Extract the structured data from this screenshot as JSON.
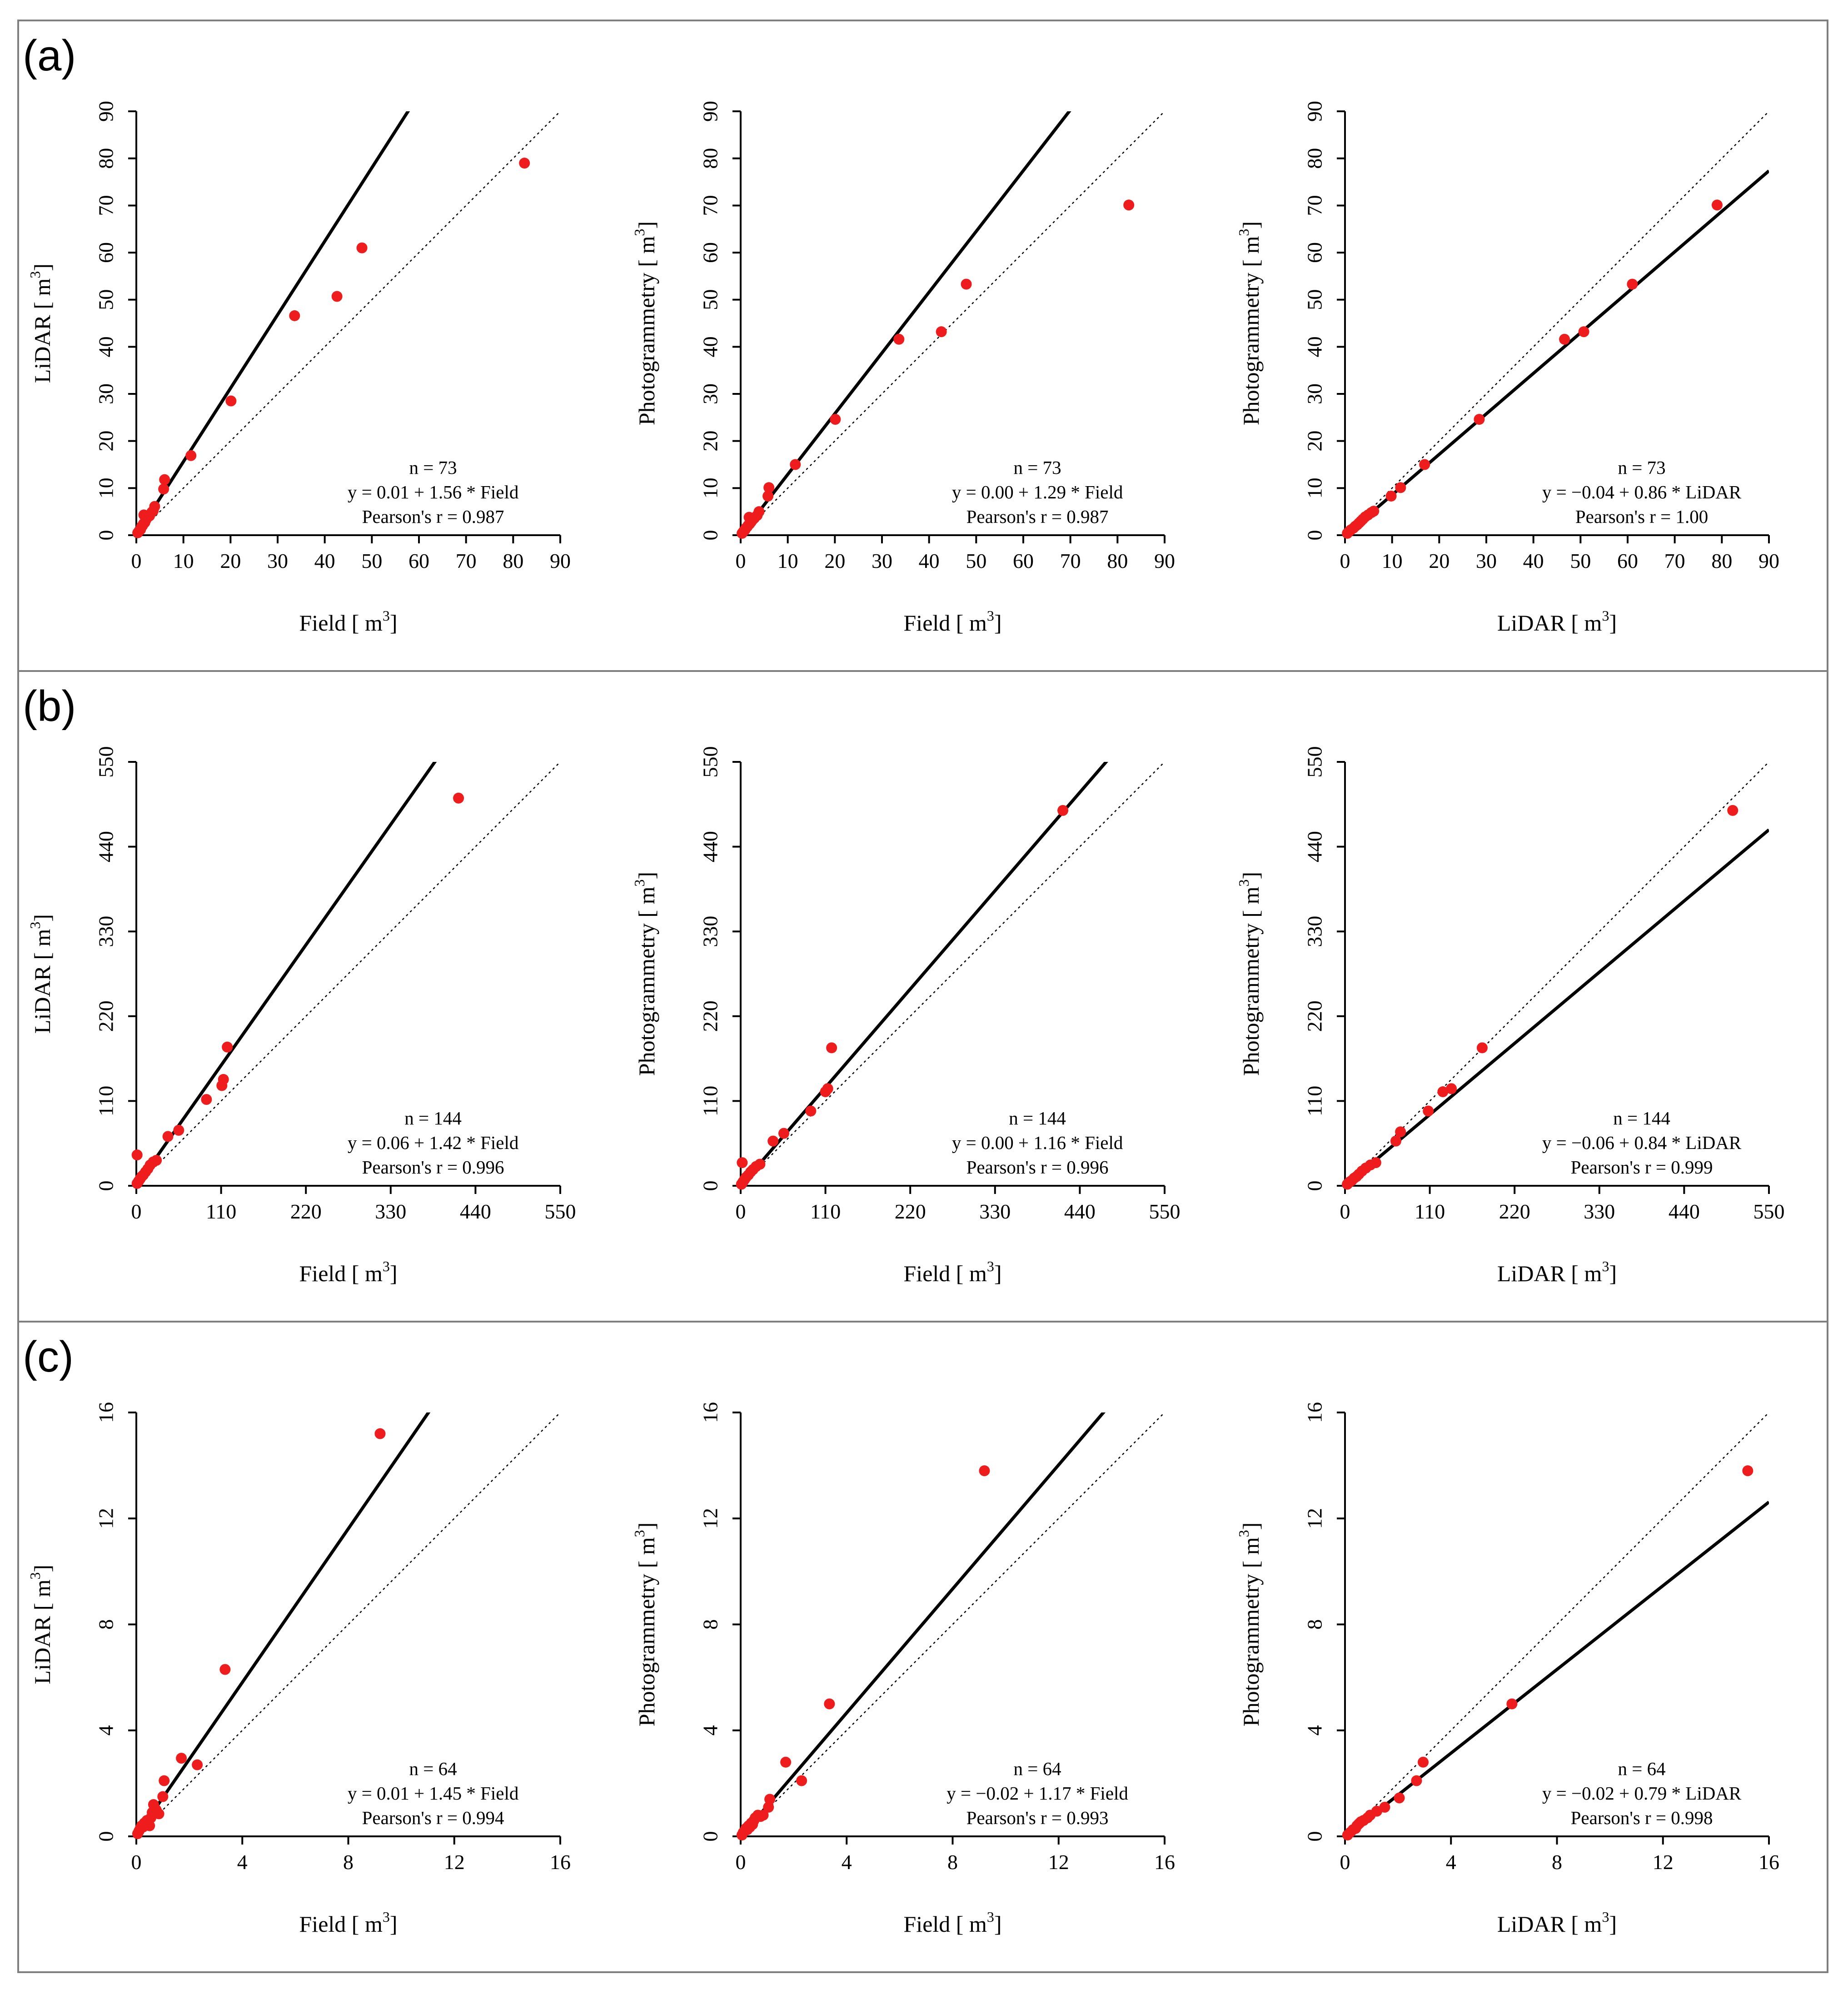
{
  "colors": {
    "points": "#ee1c1c",
    "lines": "#000000",
    "frame": "#7f7f7f"
  },
  "panels": [
    {
      "label": "(a)",
      "plots": [
        {
          "type": "scatter",
          "xlabel": "Field",
          "ylabel": "LiDAR",
          "unit": "[ m",
          "unit_sup": "3",
          "unit_close": "]",
          "xlim": [
            0,
            90
          ],
          "ylim": [
            0,
            90
          ],
          "ticks": [
            "0",
            "10",
            "20",
            "30",
            "40",
            "50",
            "60",
            "70",
            "80",
            "90"
          ],
          "tick_values": [
            0,
            10,
            20,
            30,
            40,
            50,
            60,
            70,
            80,
            90
          ],
          "fit": {
            "intercept": 0.01,
            "slope": 1.56
          },
          "stats": [
            "n = 73",
            "y = 0.01 + 1.56 * Field",
            "Pearson's r = 0.987"
          ],
          "points": [
            [
              0.3,
              0.5
            ],
            [
              0.6,
              0.9
            ],
            [
              0.9,
              1.2
            ],
            [
              1.1,
              1.8
            ],
            [
              1.3,
              2.0
            ],
            [
              1.5,
              2.4
            ],
            [
              1.8,
              2.7
            ],
            [
              2.0,
              3.2
            ],
            [
              2.2,
              3.6
            ],
            [
              2.5,
              3.9
            ],
            [
              1.6,
              4.3
            ],
            [
              2.8,
              4.1
            ],
            [
              3.3,
              4.9
            ],
            [
              3.6,
              5.2
            ],
            [
              3.9,
              6.1
            ],
            [
              5.8,
              9.8
            ],
            [
              6.0,
              11.8
            ],
            [
              11.6,
              16.9
            ],
            [
              20.1,
              28.5
            ],
            [
              33.6,
              46.6
            ],
            [
              42.6,
              50.7
            ],
            [
              47.9,
              61.0
            ],
            [
              82.4,
              79.0
            ]
          ]
        },
        {
          "type": "scatter",
          "xlabel": "Field",
          "ylabel": "Photogrammetry",
          "unit": "[ m",
          "unit_sup": "3",
          "unit_close": "]",
          "xlim": [
            0,
            90
          ],
          "ylim": [
            0,
            90
          ],
          "ticks": [
            "0",
            "10",
            "20",
            "30",
            "40",
            "50",
            "60",
            "70",
            "80",
            "90"
          ],
          "tick_values": [
            0,
            10,
            20,
            30,
            40,
            50,
            60,
            70,
            80,
            90
          ],
          "fit": {
            "intercept": 0.0,
            "slope": 1.29
          },
          "stats": [
            "n = 73",
            "y = 0.00 + 1.29 * Field",
            "Pearson's r = 0.987"
          ],
          "points": [
            [
              0.3,
              0.4
            ],
            [
              0.6,
              0.8
            ],
            [
              0.9,
              1.1
            ],
            [
              1.1,
              1.5
            ],
            [
              1.4,
              1.8
            ],
            [
              1.6,
              2.1
            ],
            [
              1.9,
              2.4
            ],
            [
              2.2,
              2.8
            ],
            [
              2.5,
              3.2
            ],
            [
              1.8,
              3.8
            ],
            [
              2.9,
              3.6
            ],
            [
              3.5,
              4.2
            ],
            [
              3.9,
              5.0
            ],
            [
              5.8,
              8.3
            ],
            [
              6.0,
              10.1
            ],
            [
              11.6,
              15.0
            ],
            [
              20.1,
              24.6
            ],
            [
              33.6,
              41.6
            ],
            [
              42.6,
              43.2
            ],
            [
              47.9,
              53.3
            ],
            [
              82.4,
              70.1
            ]
          ]
        },
        {
          "type": "scatter",
          "xlabel": "LiDAR",
          "ylabel": "Photogrammetry",
          "unit": "[ m",
          "unit_sup": "3",
          "unit_close": "]",
          "xlim": [
            0,
            90
          ],
          "ylim": [
            0,
            90
          ],
          "ticks": [
            "0",
            "10",
            "20",
            "30",
            "40",
            "50",
            "60",
            "70",
            "80",
            "90"
          ],
          "tick_values": [
            0,
            10,
            20,
            30,
            40,
            50,
            60,
            70,
            80,
            90
          ],
          "fit": {
            "intercept": -0.04,
            "slope": 0.86
          },
          "stats": [
            "n = 73",
            "y = −0.04 + 0.86 * LiDAR",
            "Pearson's r = 1.00"
          ],
          "points": [
            [
              0.5,
              0.4
            ],
            [
              0.9,
              0.8
            ],
            [
              1.2,
              1.1
            ],
            [
              1.8,
              1.5
            ],
            [
              2.2,
              1.9
            ],
            [
              2.6,
              2.2
            ],
            [
              3.0,
              2.6
            ],
            [
              3.4,
              3.0
            ],
            [
              3.8,
              3.4
            ],
            [
              4.3,
              3.9
            ],
            [
              4.9,
              4.3
            ],
            [
              5.6,
              4.8
            ],
            [
              6.1,
              5.1
            ],
            [
              9.8,
              8.3
            ],
            [
              11.8,
              10.1
            ],
            [
              16.9,
              15.0
            ],
            [
              28.5,
              24.6
            ],
            [
              46.6,
              41.6
            ],
            [
              50.7,
              43.2
            ],
            [
              61.0,
              53.3
            ],
            [
              79.0,
              70.1
            ]
          ]
        }
      ]
    },
    {
      "label": "(b)",
      "plots": [
        {
          "type": "scatter",
          "xlabel": "Field",
          "ylabel": "LiDAR",
          "unit": "[ m",
          "unit_sup": "3",
          "unit_close": "]",
          "xlim": [
            0,
            550
          ],
          "ylim": [
            0,
            550
          ],
          "ticks": [
            "0",
            "110",
            "220",
            "330",
            "440",
            "550"
          ],
          "tick_values": [
            0,
            110,
            220,
            330,
            440,
            550
          ],
          "fit": {
            "intercept": 0.06,
            "slope": 1.42
          },
          "stats": [
            "n = 144",
            "y = 0.06 + 1.42 * Field",
            "Pearson's r = 0.996"
          ],
          "points": [
            [
              1,
              3
            ],
            [
              3,
              6
            ],
            [
              5,
              9
            ],
            [
              7,
              12
            ],
            [
              9,
              14
            ],
            [
              12,
              18
            ],
            [
              15,
              22
            ],
            [
              18,
              27
            ],
            [
              22,
              31
            ],
            [
              26,
              33
            ],
            [
              1,
              40
            ],
            [
              41,
              64
            ],
            [
              55,
              72
            ],
            [
              91,
              112
            ],
            [
              111,
              130
            ],
            [
              113,
              138
            ],
            [
              118,
              180
            ],
            [
              418,
              503
            ]
          ]
        },
        {
          "type": "scatter",
          "xlabel": "Field",
          "ylabel": "Photogrammetry",
          "unit": "[ m",
          "unit_sup": "3",
          "unit_close": "]",
          "xlim": [
            0,
            550
          ],
          "ylim": [
            0,
            550
          ],
          "ticks": [
            "0",
            "110",
            "220",
            "330",
            "440",
            "550"
          ],
          "tick_values": [
            0,
            110,
            220,
            330,
            440,
            550
          ],
          "fit": {
            "intercept": 0.0,
            "slope": 1.16
          },
          "stats": [
            "n = 144",
            "y = 0.00 + 1.16 * Field",
            "Pearson's r = 0.996"
          ],
          "points": [
            [
              1,
              2
            ],
            [
              3,
              5
            ],
            [
              5,
              8
            ],
            [
              7,
              11
            ],
            [
              10,
              14
            ],
            [
              13,
              18
            ],
            [
              16,
              21
            ],
            [
              20,
              25
            ],
            [
              25,
              28
            ],
            [
              2,
              30
            ],
            [
              42,
              58
            ],
            [
              56,
              68
            ],
            [
              91,
              97
            ],
            [
              110,
              122
            ],
            [
              113,
              126
            ],
            [
              118,
              179
            ],
            [
              418,
              487
            ]
          ]
        },
        {
          "type": "scatter",
          "xlabel": "LiDAR",
          "ylabel": "Photogrammetry",
          "unit": "[ m",
          "unit_sup": "3",
          "unit_close": "]",
          "xlim": [
            0,
            550
          ],
          "ylim": [
            0,
            550
          ],
          "ticks": [
            "0",
            "110",
            "220",
            "330",
            "440",
            "550"
          ],
          "tick_values": [
            0,
            110,
            220,
            330,
            440,
            550
          ],
          "fit": {
            "intercept": -0.06,
            "slope": 0.84
          },
          "stats": [
            "n = 144",
            "y = −0.06 + 0.84 * LiDAR",
            "Pearson's r = 0.999"
          ],
          "points": [
            [
              3,
              2
            ],
            [
              6,
              5
            ],
            [
              9,
              7
            ],
            [
              12,
              10
            ],
            [
              15,
              12
            ],
            [
              18,
              15
            ],
            [
              22,
              19
            ],
            [
              27,
              23
            ],
            [
              33,
              27
            ],
            [
              40,
              30
            ],
            [
              66,
              58
            ],
            [
              72,
              70
            ],
            [
              108,
              97
            ],
            [
              127,
              122
            ],
            [
              138,
              126
            ],
            [
              178,
              179
            ],
            [
              503,
              487
            ]
          ]
        }
      ]
    },
    {
      "label": "(c)",
      "plots": [
        {
          "type": "scatter",
          "xlabel": "Field",
          "ylabel": "LiDAR",
          "unit": "[ m",
          "unit_sup": "3",
          "unit_close": "]",
          "xlim": [
            0,
            16
          ],
          "ylim": [
            0,
            16
          ],
          "ticks": [
            "0",
            "4",
            "8",
            "12",
            "16"
          ],
          "tick_values": [
            0,
            4,
            8,
            12,
            16
          ],
          "fit": {
            "intercept": 0.01,
            "slope": 1.45
          },
          "stats": [
            "n = 64",
            "y = 0.01 + 1.45 * Field",
            "Pearson's r = 0.994"
          ],
          "points": [
            [
              0.05,
              0.1
            ],
            [
              0.1,
              0.2
            ],
            [
              0.15,
              0.3
            ],
            [
              0.2,
              0.4
            ],
            [
              0.25,
              0.35
            ],
            [
              0.3,
              0.5
            ],
            [
              0.35,
              0.45
            ],
            [
              0.4,
              0.6
            ],
            [
              0.45,
              0.55
            ],
            [
              0.5,
              0.4
            ],
            [
              0.55,
              0.7
            ],
            [
              0.6,
              0.9
            ],
            [
              0.65,
              1.2
            ],
            [
              0.75,
              1.0
            ],
            [
              0.85,
              0.85
            ],
            [
              1.0,
              1.5
            ],
            [
              1.05,
              2.1
            ],
            [
              1.7,
              2.95
            ],
            [
              2.3,
              2.7
            ],
            [
              3.35,
              6.3
            ],
            [
              9.2,
              15.2
            ]
          ]
        },
        {
          "type": "scatter",
          "xlabel": "Field",
          "ylabel": "Photogrammetry",
          "unit": "[ m",
          "unit_sup": "3",
          "unit_close": "]",
          "xlim": [
            0,
            16
          ],
          "ylim": [
            0,
            16
          ],
          "ticks": [
            "0",
            "4",
            "8",
            "12",
            "16"
          ],
          "tick_values": [
            0,
            4,
            8,
            12,
            16
          ],
          "fit": {
            "intercept": -0.02,
            "slope": 1.17
          },
          "stats": [
            "n = 64",
            "y = −0.02 + 1.17 * Field",
            "Pearson's r = 0.993"
          ],
          "points": [
            [
              0.05,
              0.05
            ],
            [
              0.1,
              0.15
            ],
            [
              0.15,
              0.2
            ],
            [
              0.2,
              0.3
            ],
            [
              0.25,
              0.25
            ],
            [
              0.3,
              0.4
            ],
            [
              0.35,
              0.35
            ],
            [
              0.4,
              0.5
            ],
            [
              0.45,
              0.45
            ],
            [
              0.5,
              0.6
            ],
            [
              0.55,
              0.7
            ],
            [
              0.65,
              0.8
            ],
            [
              0.75,
              0.75
            ],
            [
              0.85,
              0.8
            ],
            [
              1.05,
              1.1
            ],
            [
              1.1,
              1.4
            ],
            [
              1.7,
              2.8
            ],
            [
              2.3,
              2.1
            ],
            [
              3.35,
              5.0
            ],
            [
              9.2,
              13.8
            ]
          ]
        },
        {
          "type": "scatter",
          "xlabel": "LiDAR",
          "ylabel": "Photogrammetry",
          "unit": "[ m",
          "unit_sup": "3",
          "unit_close": "]",
          "xlim": [
            0,
            16
          ],
          "ylim": [
            0,
            16
          ],
          "ticks": [
            "0",
            "4",
            "8",
            "12",
            "16"
          ],
          "tick_values": [
            0,
            4,
            8,
            12,
            16
          ],
          "fit": {
            "intercept": -0.02,
            "slope": 0.79
          },
          "stats": [
            "n = 64",
            "y = −0.02 + 0.79 * LiDAR",
            "Pearson's r = 0.998"
          ],
          "points": [
            [
              0.1,
              0.05
            ],
            [
              0.2,
              0.15
            ],
            [
              0.3,
              0.25
            ],
            [
              0.4,
              0.3
            ],
            [
              0.45,
              0.4
            ],
            [
              0.5,
              0.45
            ],
            [
              0.55,
              0.5
            ],
            [
              0.6,
              0.55
            ],
            [
              0.7,
              0.6
            ],
            [
              0.85,
              0.7
            ],
            [
              0.95,
              0.8
            ],
            [
              1.2,
              0.95
            ],
            [
              1.5,
              1.1
            ],
            [
              2.05,
              1.45
            ],
            [
              2.7,
              2.1
            ],
            [
              2.95,
              2.8
            ],
            [
              6.3,
              5.0
            ],
            [
              15.2,
              13.8
            ]
          ]
        }
      ]
    }
  ]
}
